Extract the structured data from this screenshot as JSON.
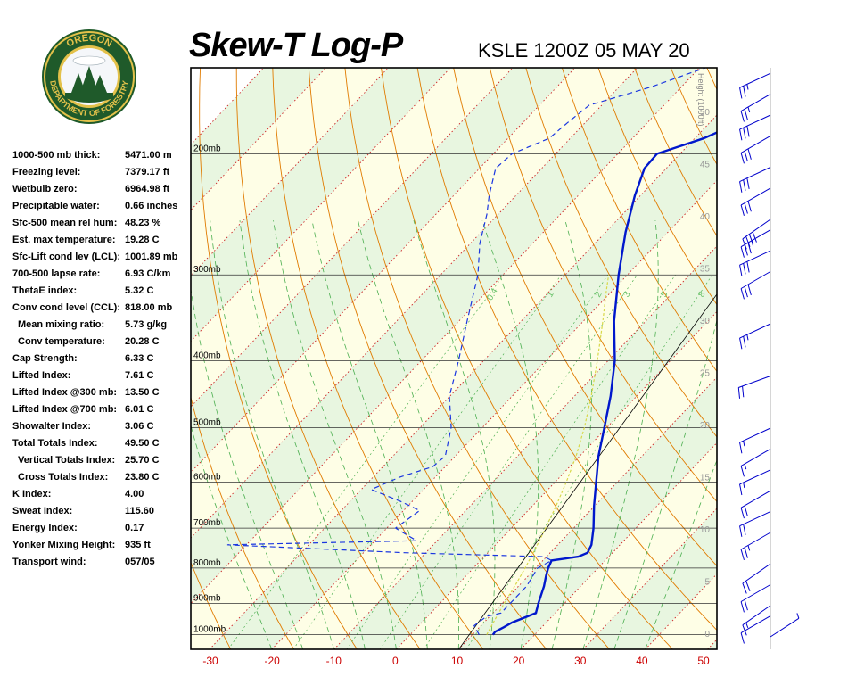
{
  "title": "Skew-T Log-P",
  "station": "KSLE 1200Z 05 MAY 20",
  "logo": {
    "top_text": "OREGON",
    "bottom_text": "DEPARTMENT OF FORESTRY"
  },
  "indices": [
    {
      "label": "1000-500 mb thick:",
      "value": "5471.00 m"
    },
    {
      "label": "Freezing level:",
      "value": "7379.17 ft"
    },
    {
      "label": "Wetbulb zero:",
      "value": "6964.98 ft"
    },
    {
      "label": "Precipitable water:",
      "value": "0.66 inches"
    },
    {
      "label": "Sfc-500 mean rel hum:",
      "value": "48.23 %"
    },
    {
      "label": "Est. max temperature:",
      "value": "19.28 C"
    },
    {
      "label": "Sfc-Lift cond lev (LCL):",
      "value": "1001.89 mb"
    },
    {
      "label": "700-500 lapse rate:",
      "value": "6.93 C/km"
    },
    {
      "label": "ThetaE index:",
      "value": "5.32 C"
    },
    {
      "label": "Conv cond level (CCL):",
      "value": "818.00 mb"
    },
    {
      "label": "Mean mixing ratio:",
      "value": "5.73 g/kg",
      "indent": true
    },
    {
      "label": "Conv temperature:",
      "value": "20.28 C",
      "indent": true
    },
    {
      "label": "Cap Strength:",
      "value": "6.33 C"
    },
    {
      "label": "Lifted Index:",
      "value": "7.61 C"
    },
    {
      "label": "Lifted Index @300 mb:",
      "value": "13.50 C"
    },
    {
      "label": "Lifted Index @700 mb:",
      "value": "6.01 C"
    },
    {
      "label": "Showalter Index:",
      "value": "3.06 C"
    },
    {
      "label": "Total Totals Index:",
      "value": "49.50 C"
    },
    {
      "label": "Vertical Totals Index:",
      "value": "25.70 C",
      "indent": true
    },
    {
      "label": "Cross Totals Index:",
      "value": "23.80 C",
      "indent": true
    },
    {
      "label": "K Index:",
      "value": "4.00"
    },
    {
      "label": "Sweat Index:",
      "value": "115.60"
    },
    {
      "label": "Energy Index:",
      "value": "0.17"
    },
    {
      "label": "Yonker Mixing Height:",
      "value": "935 ft"
    },
    {
      "label": "Transport wind:",
      "value": "057/05"
    }
  ],
  "chart_data": {
    "type": "line",
    "title": "Skew-T Log-P",
    "subtitle": "KSLE 1200Z 05 MAY 20",
    "x_ticks": [
      -30,
      -20,
      -10,
      0,
      10,
      20,
      30,
      40,
      50
    ],
    "pressure_labels": [
      "200mb",
      "300mb",
      "400mb",
      "500mb",
      "600mb",
      "700mb",
      "800mb",
      "900mb",
      "1000mb"
    ],
    "height_axis_label": "Height (1000ft)",
    "height_ticks": [
      50,
      45,
      40,
      35,
      30,
      25,
      20,
      15,
      10,
      5,
      0
    ],
    "mixing_ratio_labels": [
      "0.4",
      "1",
      "2",
      "3",
      "5",
      "8"
    ],
    "series": [],
    "temperature_profile": [
      {
        "p": 1000,
        "t": 13.3
      },
      {
        "p": 990,
        "t": 13.2
      },
      {
        "p": 975,
        "t": 13.9
      },
      {
        "p": 960,
        "t": 14.5
      },
      {
        "p": 930,
        "t": 16.9
      },
      {
        "p": 900,
        "t": 15.8
      },
      {
        "p": 850,
        "t": 14.1
      },
      {
        "p": 820,
        "t": 12.8
      },
      {
        "p": 800,
        "t": 12.0
      },
      {
        "p": 780,
        "t": 11.4
      },
      {
        "p": 770,
        "t": 15.1
      },
      {
        "p": 760,
        "t": 16.0
      },
      {
        "p": 740,
        "t": 15.4
      },
      {
        "p": 700,
        "t": 13.2
      },
      {
        "p": 650,
        "t": 9.9
      },
      {
        "p": 600,
        "t": 6.6
      },
      {
        "p": 550,
        "t": 3.0
      },
      {
        "p": 500,
        "t": -0.4
      },
      {
        "p": 450,
        "t": -4.2
      },
      {
        "p": 400,
        "t": -8.9
      },
      {
        "p": 350,
        "t": -15.1
      },
      {
        "p": 300,
        "t": -21.4
      },
      {
        "p": 260,
        "t": -26.8
      },
      {
        "p": 230,
        "t": -30.9
      },
      {
        "p": 210,
        "t": -33.5
      },
      {
        "p": 200,
        "t": -33.7
      },
      {
        "p": 190,
        "t": -28.6
      },
      {
        "p": 182,
        "t": -25.9
      },
      {
        "p": 175,
        "t": -26.3
      },
      {
        "p": 166,
        "t": -25.0
      },
      {
        "p": 160,
        "t": -23.4
      },
      {
        "p": 155,
        "t": -22.3
      },
      {
        "p": 150,
        "t": -20.6
      }
    ],
    "dewpoint_profile": [
      {
        "p": 1000,
        "t": 11.1
      },
      {
        "p": 970,
        "t": 8.9
      },
      {
        "p": 940,
        "t": 9.5
      },
      {
        "p": 930,
        "t": 11.3
      },
      {
        "p": 850,
        "t": 11.3
      },
      {
        "p": 800,
        "t": 10.3
      },
      {
        "p": 780,
        "t": 11.4
      },
      {
        "p": 770,
        "t": 9.6
      },
      {
        "p": 760,
        "t": -13.4
      },
      {
        "p": 740,
        "t": -43.1
      },
      {
        "p": 730,
        "t": -13.3
      },
      {
        "p": 700,
        "t": -18.6
      },
      {
        "p": 660,
        "t": -17.4
      },
      {
        "p": 640,
        "t": -21.9
      },
      {
        "p": 615,
        "t": -28.4
      },
      {
        "p": 590,
        "t": -25.7
      },
      {
        "p": 570,
        "t": -22.0
      },
      {
        "p": 550,
        "t": -21.6
      },
      {
        "p": 500,
        "t": -25.0
      },
      {
        "p": 450,
        "t": -30.1
      },
      {
        "p": 400,
        "t": -34.0
      },
      {
        "p": 350,
        "t": -38.7
      },
      {
        "p": 300,
        "t": -44.0
      },
      {
        "p": 270,
        "t": -48.5
      },
      {
        "p": 245,
        "t": -51.8
      },
      {
        "p": 230,
        "t": -54.3
      },
      {
        "p": 210,
        "t": -57.4
      },
      {
        "p": 200,
        "t": -57.0
      },
      {
        "p": 190,
        "t": -53.4
      },
      {
        "p": 180,
        "t": -52.8
      },
      {
        "p": 170,
        "t": -52.0
      },
      {
        "p": 160,
        "t": -44.9
      },
      {
        "p": 150,
        "t": -39.1
      }
    ],
    "parcel_profile": [
      {
        "p": 1000,
        "t": 12.3
      },
      {
        "p": 950,
        "t": 11.3
      },
      {
        "p": 900,
        "t": 10.3
      },
      {
        "p": 850,
        "t": 9.4
      },
      {
        "p": 800,
        "t": 8.3
      },
      {
        "p": 750,
        "t": 7.0
      },
      {
        "p": 700,
        "t": 5.5
      },
      {
        "p": 650,
        "t": 3.8
      },
      {
        "p": 600,
        "t": 1.8
      },
      {
        "p": 550,
        "t": -0.6
      },
      {
        "p": 500,
        "t": -3.6
      },
      {
        "p": 450,
        "t": -7.3
      },
      {
        "p": 400,
        "t": -11.7
      },
      {
        "p": 350,
        "t": -16.9
      },
      {
        "p": 320,
        "t": -20.5
      },
      {
        "p": 300,
        "t": -23.0
      }
    ],
    "wind_barbs": [
      {
        "level": 0.0,
        "dir": 57,
        "spd": 5
      },
      {
        "level": 2.0,
        "dir": 240,
        "spd": 10
      },
      {
        "level": 3.0,
        "dir": 235,
        "spd": 15
      },
      {
        "level": 5.0,
        "dir": 240,
        "spd": 20
      },
      {
        "level": 7.0,
        "dir": 235,
        "spd": 20
      },
      {
        "level": 10.0,
        "dir": 240,
        "spd": 25
      },
      {
        "level": 12.0,
        "dir": 245,
        "spd": 20
      },
      {
        "level": 14.0,
        "dir": 240,
        "spd": 20
      },
      {
        "level": 16.0,
        "dir": 245,
        "spd": 15
      },
      {
        "level": 18.0,
        "dir": 240,
        "spd": 15
      },
      {
        "level": 20.0,
        "dir": 245,
        "spd": 15
      },
      {
        "level": 25.0,
        "dir": 250,
        "spd": 20
      },
      {
        "level": 30.0,
        "dir": 245,
        "spd": 25
      },
      {
        "level": 35.0,
        "dir": 240,
        "spd": 30
      },
      {
        "level": 37.0,
        "dir": 245,
        "spd": 30
      },
      {
        "level": 39.0,
        "dir": 240,
        "spd": 35
      },
      {
        "level": 40.0,
        "dir": 235,
        "spd": 40
      },
      {
        "level": 43.0,
        "dir": 240,
        "spd": 30
      },
      {
        "level": 45.0,
        "dir": 245,
        "spd": 30
      },
      {
        "level": 48.0,
        "dir": 240,
        "spd": 30
      },
      {
        "level": 50.0,
        "dir": 245,
        "spd": 30
      },
      {
        "level": 52.0,
        "dir": 240,
        "spd": 25
      },
      {
        "level": 54.0,
        "dir": 245,
        "spd": 25
      }
    ],
    "colors": {
      "temperature": "#0018cc",
      "dewpoint": "#1a36e0",
      "parcel": "#d8d84a",
      "dry_adiabat": "#e07b00",
      "moist_adiabat": "#4caf50",
      "isotherm": "#cc2222",
      "isobar": "#333333",
      "x_tick_labels": "#cc0000",
      "wind_barb": "#0000cc",
      "band_green": "#e8f6e0",
      "band_yellow": "#fefee6"
    }
  }
}
